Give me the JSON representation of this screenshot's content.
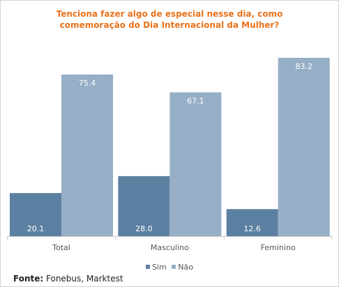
{
  "title_line1": "Tenciona fazer algo de especial nesse dia, como",
  "title_line2": "comemoração do Dia Internacional da Mulher?",
  "source_label": "Fonte:",
  "source_text": "Fonebus, Marktest",
  "colors": {
    "sim": "#5c80a1",
    "nao": "#96afc6",
    "title": "#e8731c"
  },
  "chart_data": {
    "type": "bar",
    "categories": [
      "Total",
      "Masculino",
      "Feminino"
    ],
    "series": [
      {
        "name": "Sim",
        "values": [
          20.1,
          28.0,
          12.6
        ]
      },
      {
        "name": "Não",
        "values": [
          75.4,
          67.1,
          83.2
        ]
      }
    ],
    "value_labels": [
      [
        "20.1",
        "28.0",
        "12.6"
      ],
      [
        "75.4",
        "67.1",
        "83.2"
      ]
    ],
    "ylim": [
      0,
      90
    ],
    "grid": false,
    "legend": "bottom"
  }
}
